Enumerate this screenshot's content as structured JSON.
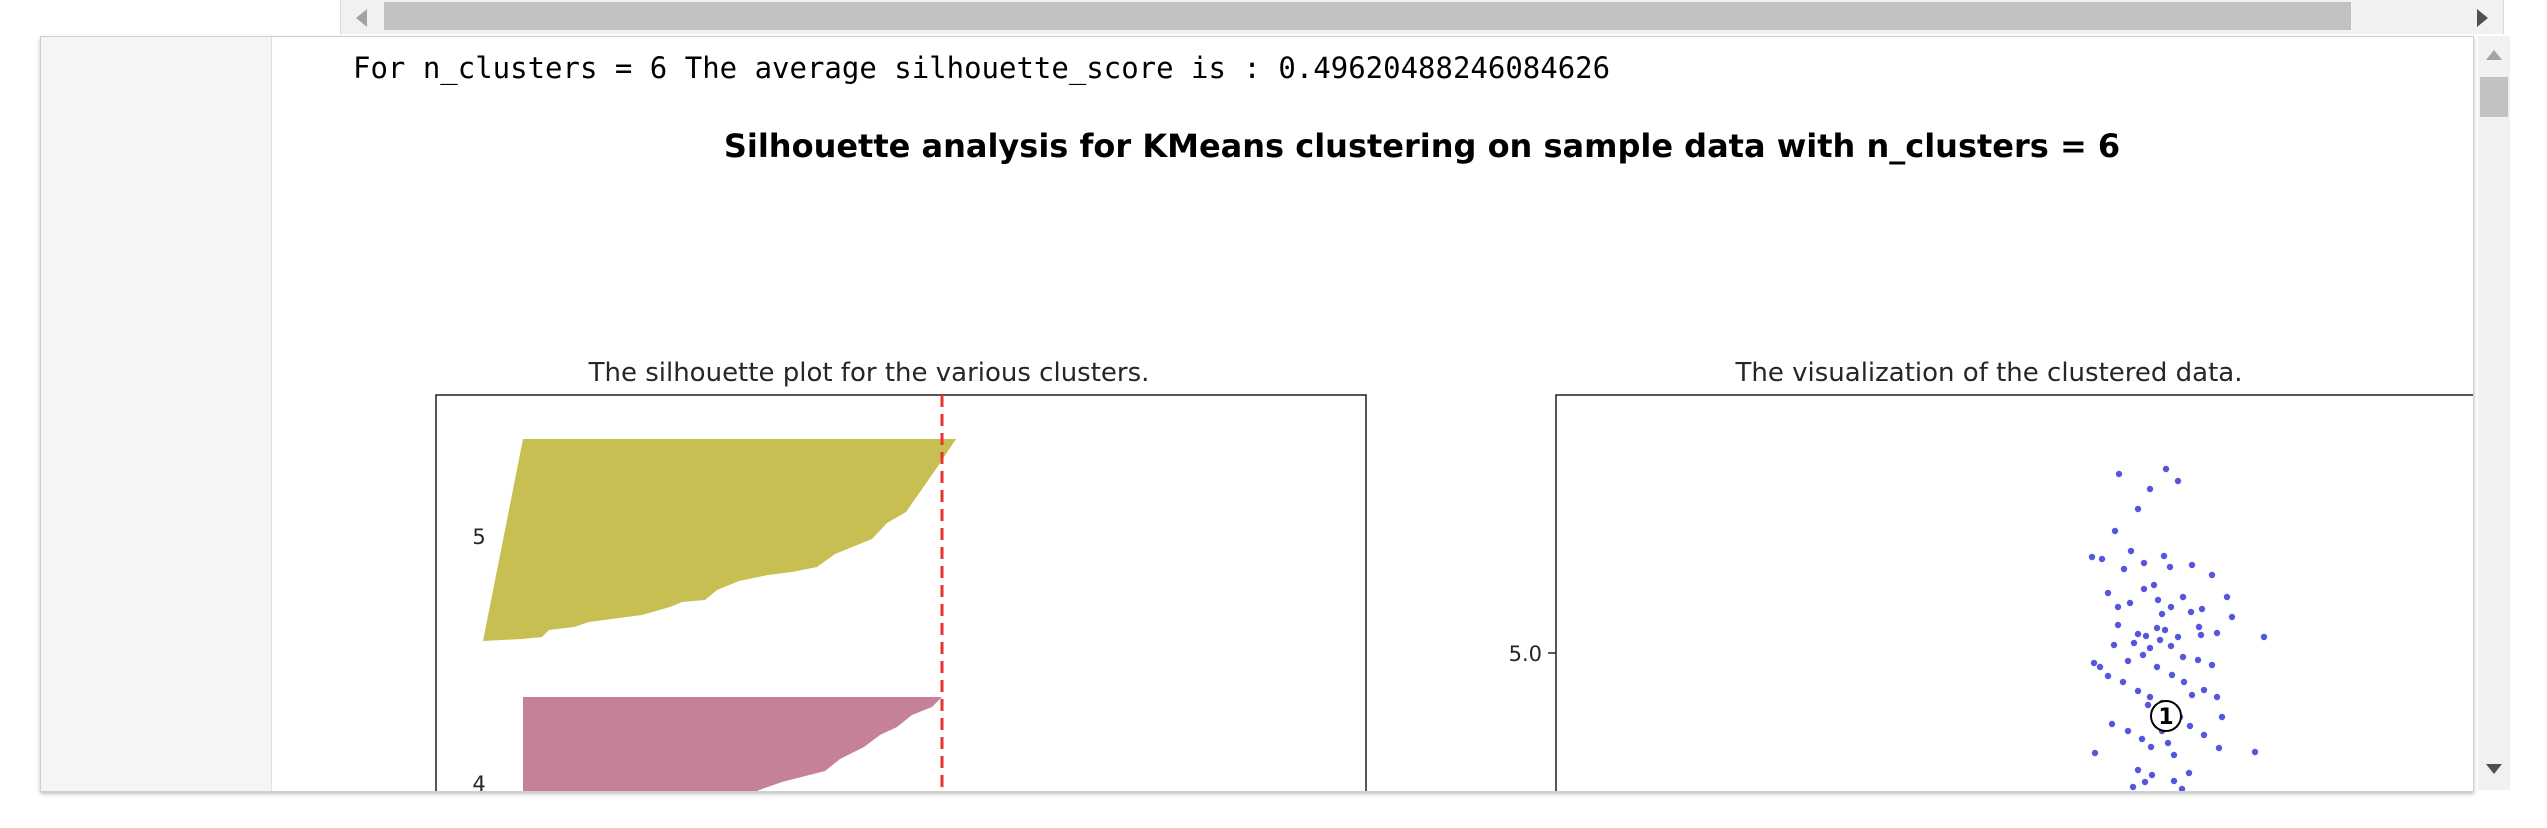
{
  "output": {
    "stdout": "For n_clusters = 6 The average silhouette_score is : 0.49620488246084626"
  },
  "figure": {
    "suptitle": "Silhouette analysis for KMeans clustering on sample data with n_clusters = 6"
  },
  "chart_data": [
    {
      "type": "area",
      "title": "The silhouette plot for the various clusters.",
      "cluster_labels": [
        "5",
        "4"
      ],
      "average_silhouette_score": 0.49620488246084626,
      "colors": {
        "cluster_5": "#c8bf53",
        "cluster_4": "#c5809a",
        "average_line": "#e8332f"
      }
    },
    {
      "type": "scatter",
      "title": "The visualization of the clustered data.",
      "ytick_labels": [
        "5.0"
      ],
      "center_labels": [
        "1"
      ],
      "colors": {
        "points": "#2b2bd6"
      }
    }
  ]
}
